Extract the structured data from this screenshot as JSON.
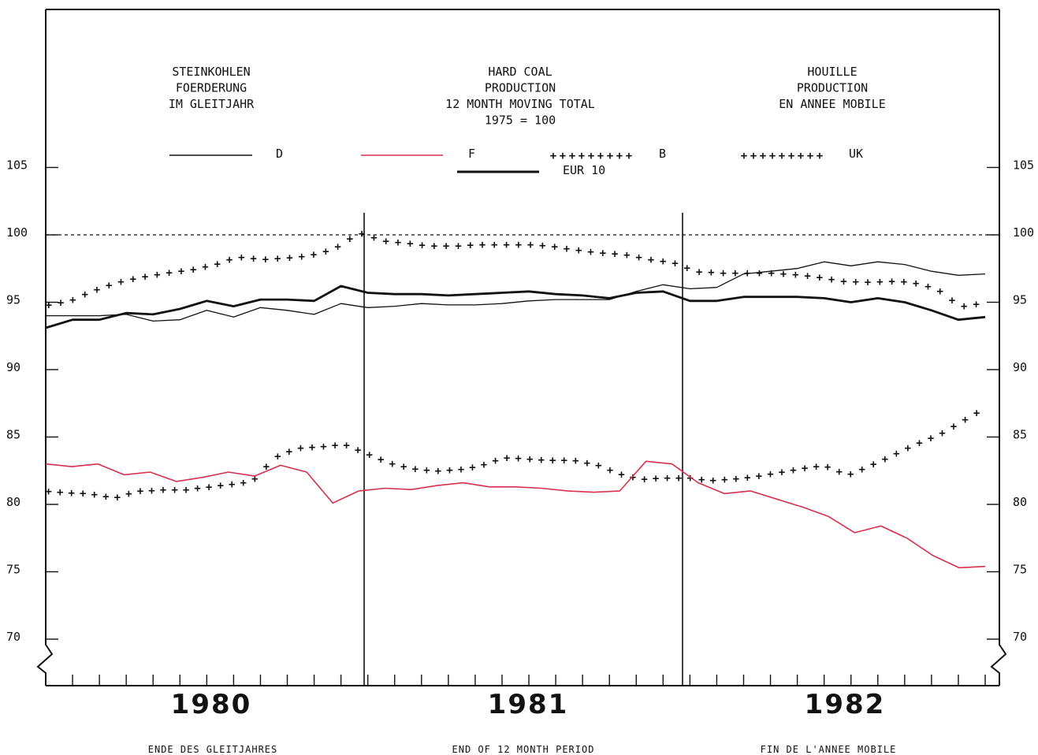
{
  "headers": {
    "german": [
      "STEINKOHLEN",
      "FOERDERUNG",
      "IM GLEITJAHR"
    ],
    "english": [
      "HARD COAL",
      "PRODUCTION",
      "12 MONTH MOVING TOTAL",
      "1975 = 100"
    ],
    "french": [
      "HOUILLE",
      "PRODUCTION",
      "EN ANNEE MOBILE"
    ]
  },
  "footers": {
    "german": "ENDE DES GLEITJAHRES",
    "english": "END OF 12 MONTH PERIOD",
    "french": "FIN DE L'ANNEE MOBILE"
  },
  "colors": {
    "F": "#d8304e",
    "ink": "#111111"
  },
  "chart_data": {
    "type": "line",
    "years": [
      "1980",
      "1981",
      "1982"
    ],
    "months_per_year": 12,
    "yticks": [
      70,
      75,
      80,
      85,
      90,
      95,
      100,
      105
    ],
    "ylim": [
      67,
      110
    ],
    "reference_line": 100,
    "legend": [
      {
        "key": "D",
        "label": "D",
        "style": "thin"
      },
      {
        "key": "F",
        "label": "F",
        "style": "red"
      },
      {
        "key": "B",
        "label": "B",
        "style": "cross"
      },
      {
        "key": "UK",
        "label": "UK",
        "style": "cross"
      },
      {
        "key": "EUR10",
        "label": "EUR 10",
        "style": "thick"
      }
    ],
    "series": [
      {
        "key": "D",
        "name": "D",
        "values": [
          94.0,
          94.0,
          94.0,
          94.1,
          93.6,
          93.7,
          94.4,
          93.9,
          94.6,
          94.4,
          94.1,
          94.9,
          94.6,
          94.7,
          94.9,
          94.8,
          94.8,
          94.9,
          95.1,
          95.2,
          95.2,
          95.2,
          95.8,
          96.3,
          96.0,
          96.1,
          97.1,
          97.3,
          97.5,
          98.0,
          97.7,
          98.0,
          97.8,
          97.3,
          97.0,
          97.1
        ]
      },
      {
        "key": "EUR10",
        "name": "EUR 10",
        "values": [
          93.1,
          93.7,
          93.7,
          94.2,
          94.1,
          94.5,
          95.1,
          94.7,
          95.2,
          95.2,
          95.1,
          96.2,
          95.7,
          95.6,
          95.6,
          95.5,
          95.6,
          95.7,
          95.8,
          95.6,
          95.5,
          95.3,
          95.7,
          95.8,
          95.1,
          95.1,
          95.4,
          95.4,
          95.4,
          95.3,
          95.0,
          95.3,
          95.0,
          94.4,
          93.7,
          93.9
        ]
      },
      {
        "key": "UK",
        "name": "UK",
        "values": [
          94.8,
          95.1,
          95.9,
          96.5,
          96.9,
          97.2,
          97.4,
          97.8,
          98.4,
          98.2,
          98.3,
          98.5,
          99.0,
          100.2,
          99.6,
          99.4,
          99.2,
          99.2,
          99.3,
          99.3,
          99.3,
          99.2,
          98.9,
          98.7,
          98.6,
          98.2,
          98.0,
          97.3,
          97.2,
          97.2,
          97.2,
          97.1,
          96.9,
          96.6,
          96.5,
          96.6,
          96.5,
          96.0,
          94.7,
          95.0
        ]
      },
      {
        "key": "B",
        "name": "B",
        "values": [
          81.0,
          80.9,
          80.8,
          80.5,
          81.0,
          81.1,
          81.1,
          81.3,
          81.5,
          81.7,
          83.5,
          84.2,
          84.3,
          84.5,
          83.8,
          83.1,
          82.7,
          82.5,
          82.6,
          82.9,
          83.5,
          83.4,
          83.3,
          83.3,
          83.0,
          82.3,
          81.9,
          82.0,
          82.0,
          81.8,
          81.9,
          82.1,
          82.4,
          82.7,
          82.9,
          82.2,
          82.9,
          83.7,
          84.5,
          85.2,
          86.2,
          87.2
        ]
      },
      {
        "key": "F",
        "name": "F",
        "values": [
          83.0,
          82.8,
          83.0,
          82.2,
          82.4,
          81.7,
          82.0,
          82.4,
          82.1,
          82.9,
          82.4,
          80.1,
          81.0,
          81.2,
          81.1,
          81.4,
          81.6,
          81.3,
          81.3,
          81.2,
          81.0,
          80.9,
          81.0,
          83.2,
          83.0,
          81.6,
          80.8,
          81.0,
          80.4,
          79.8,
          79.1,
          77.9,
          78.4,
          77.5,
          76.2,
          75.3,
          75.4
        ]
      }
    ]
  }
}
